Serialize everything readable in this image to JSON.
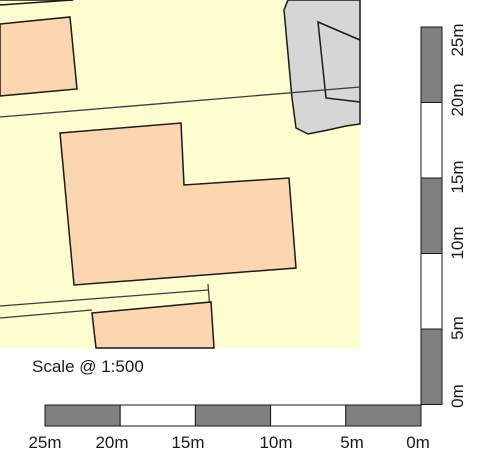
{
  "map": {
    "colors": {
      "background": "#ffffff",
      "ground": "#fdfdcf",
      "building": "#fcd5b1",
      "paved_area": "#d6d6d6",
      "outline": "#1a1a1a",
      "boundary": "#3c3c3c",
      "scale_dark": "#808080",
      "scale_light": "#ffffff"
    }
  },
  "scale_note": "Scale @ 1:500",
  "horizontal_scale": {
    "tick_labels": [
      "25m",
      "20m",
      "15m",
      "10m",
      "5m",
      "0m"
    ]
  },
  "vertical_scale": {
    "tick_labels": [
      "0m",
      "5m",
      "10m",
      "15m",
      "20m",
      "25m"
    ]
  }
}
